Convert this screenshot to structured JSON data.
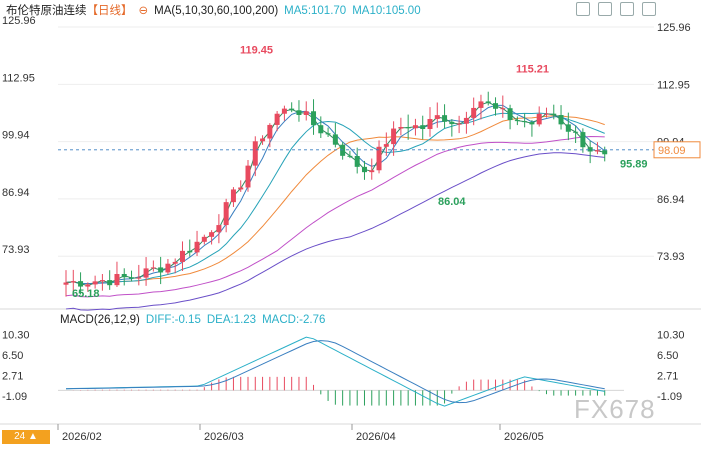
{
  "header": {
    "symbol": "布伦特原油连续",
    "period_tag": "【日线】",
    "ma_label": "MA(5,10,30,60,100,200)",
    "ma5": "MA5:101.70",
    "ma10": "MA10:105.00"
  },
  "macd_header": {
    "label": "MACD(26,12,9)",
    "diff": "DIFF:-0.15",
    "dea": "DEA:1.23",
    "macd": "MACD:-2.76"
  },
  "watermark": "FX678",
  "colors": {
    "up": "#e84a5f",
    "down": "#2ba05c",
    "ma5": "#2f8a5f",
    "ma10": "#3a7fc0",
    "ma30": "#27a3b8",
    "ma60": "#f08a3c",
    "ma100": "#c050c8",
    "ma200": "#6a4fc8"
  },
  "chart_data": {
    "type": "candlestick",
    "x_ticks": [
      "2026/02",
      "2026/03",
      "2026/04",
      "2026/05"
    ],
    "y_ticks": [
      "125.96",
      "112.95",
      "99.94",
      "86.94",
      "73.93"
    ],
    "macd_ticks": [
      "10.30",
      "6.50",
      "2.71",
      "-1.09"
    ],
    "last_price": "98.09",
    "annotations": [
      "119.45",
      "115.21",
      "86.04",
      "65.18",
      "95.89"
    ],
    "high": 119.45,
    "low": 65.18,
    "macd_range": [
      -4.0,
      11.5
    ],
    "price_range": [
      64.0,
      128.0
    ],
    "candles_count": 75
  }
}
